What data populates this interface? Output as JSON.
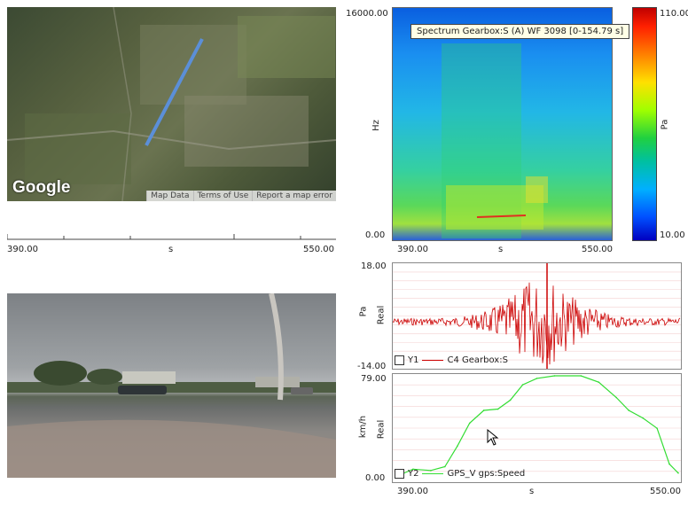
{
  "map": {
    "logo": "Google",
    "links": [
      "Map Data",
      "Terms of Use",
      "Report a map error"
    ],
    "axis": {
      "min": "390.00",
      "unit": "s",
      "max": "550.00"
    }
  },
  "spectrogram": {
    "tooltip": "Spectrum Gearbox:S (A) WF 3098 [0-154.79 s]",
    "y_top": "16000.00",
    "y_bottom": "0.00",
    "y_unit": "Hz",
    "x_min": "390.00",
    "x_unit": "s",
    "x_max": "550.00",
    "colorbar": {
      "max": "110.00",
      "min": "10.00",
      "unit": "Pa"
    }
  },
  "gearbox": {
    "y_top": "18.00",
    "y_bottom": "-14.00",
    "y_unit": "Pa",
    "y_mode": "Real",
    "legend_axis": "Y1",
    "legend_name": "C4 Gearbox:S",
    "color": "#cc0000"
  },
  "speed": {
    "y_top": "79.00",
    "y_bottom": "0.00",
    "y_unit": "km/h",
    "y_mode": "Real",
    "legend_axis": "Y2",
    "legend_name": "GPS_V gps:Speed",
    "color": "#33dd33",
    "x_min": "390.00",
    "x_unit": "s",
    "x_max": "550.00"
  },
  "chart_data": [
    {
      "type": "line",
      "series": [
        {
          "name": "GPS_V gps:Speed",
          "x": [
            390,
            400,
            410,
            418,
            425,
            432,
            440,
            448,
            455,
            462,
            470,
            480,
            495,
            505,
            515,
            522,
            530,
            538,
            545,
            550
          ],
          "y": [
            0,
            6,
            5,
            8,
            24,
            42,
            52,
            53,
            60,
            72,
            77,
            79,
            79,
            74,
            62,
            52,
            46,
            38,
            10,
            3
          ]
        }
      ],
      "ylim": [
        0,
        79
      ],
      "xlim": [
        390,
        550
      ]
    }
  ]
}
